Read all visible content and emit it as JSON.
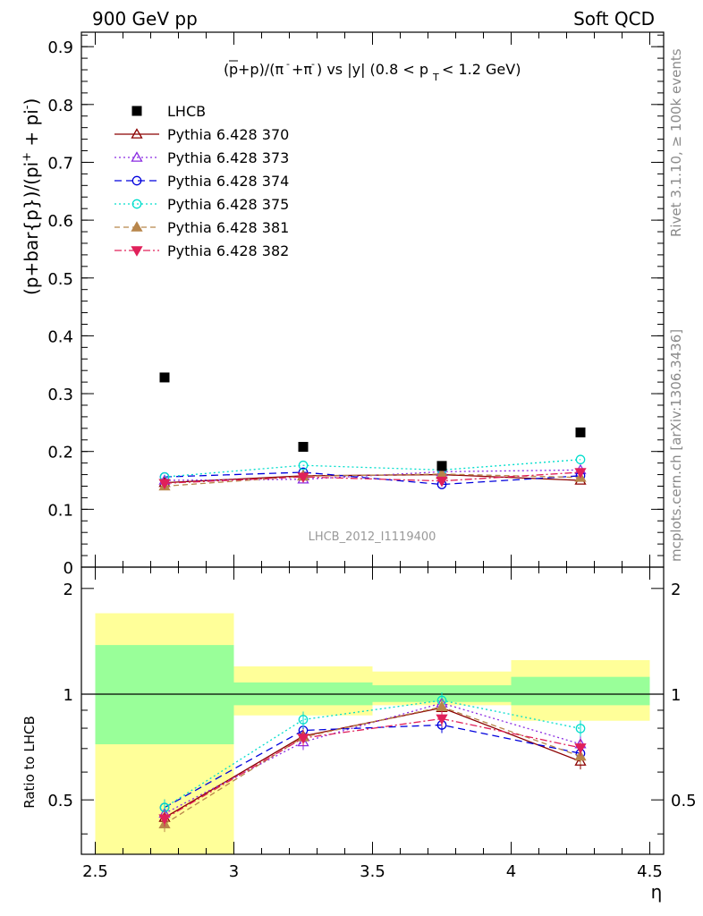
{
  "header": {
    "left": "900 GeV pp",
    "right": "Soft QCD"
  },
  "side": {
    "rivet": "Rivet 3.1.10, ≥ 100k events",
    "mcplots": "mcplots.cern.ch [arXiv:1306.3436]"
  },
  "chart_data": {
    "type": "scatter",
    "title": "(p̄+p)/(π⁻+π⁻) vs |y| (0.8 < p_T < 1.2 GeV)",
    "analysis_id": "LHCB_2012_I1119400",
    "xlabel": "η",
    "ylabel": "(p+bar{p})/(pi⁺ + pi⁻)",
    "ratio_ylabel": "Ratio to LHCB",
    "xlim": [
      2.45,
      4.55
    ],
    "ylim": [
      0,
      0.925
    ],
    "ratio_ylim": [
      0.35,
      2.3
    ],
    "x_ticks": [
      "2.5",
      "3",
      "3.5",
      "4",
      "4.5"
    ],
    "y_ticks": [
      "0",
      "0.1",
      "0.2",
      "0.3",
      "0.4",
      "0.5",
      "0.6",
      "0.7",
      "0.8",
      "0.9"
    ],
    "ratio_ticks": [
      "0.5",
      "1",
      "2"
    ],
    "x": [
      2.75,
      3.25,
      3.75,
      4.25
    ],
    "bins": [
      [
        2.5,
        3.0
      ],
      [
        3.0,
        3.5
      ],
      [
        3.5,
        4.0
      ],
      [
        4.0,
        4.5
      ]
    ],
    "data": {
      "name": "LHCB",
      "values": [
        0.328,
        0.208,
        0.175,
        0.233
      ],
      "color": "#000000"
    },
    "ratio_bands": {
      "inner": [
        [
          0.72,
          1.38
        ],
        [
          0.93,
          1.08
        ],
        [
          0.95,
          1.06
        ],
        [
          0.93,
          1.12
        ]
      ],
      "outer": [
        [
          0.35,
          1.7
        ],
        [
          0.87,
          1.2
        ],
        [
          0.93,
          1.16
        ],
        [
          0.84,
          1.25
        ]
      ],
      "inner_color": "#99ff99",
      "outer_color": "#ffff99"
    },
    "series": [
      {
        "name": "Pythia 6.428 370",
        "values": [
          0.146,
          0.158,
          0.16,
          0.15
        ],
        "color": "#8b0000",
        "dash": "",
        "marker": "tri-open"
      },
      {
        "name": "Pythia 6.428 373",
        "values": [
          0.15,
          0.152,
          0.165,
          0.168
        ],
        "color": "#8a2be2",
        "dash": "2,3",
        "marker": "tri-open"
      },
      {
        "name": "Pythia 6.428 374",
        "values": [
          0.156,
          0.164,
          0.143,
          0.158
        ],
        "color": "#0000dd",
        "dash": "8,5",
        "marker": "circle-open"
      },
      {
        "name": "Pythia 6.428 375",
        "values": [
          0.156,
          0.176,
          0.168,
          0.186
        ],
        "color": "#00ddcc",
        "dash": "2,3",
        "marker": "circle-open"
      },
      {
        "name": "Pythia 6.428 381",
        "values": [
          0.14,
          0.157,
          0.161,
          0.155
        ],
        "color": "#b8864b",
        "dash": "6,4",
        "marker": "tri-filled"
      },
      {
        "name": "Pythia 6.428 382",
        "values": [
          0.145,
          0.156,
          0.149,
          0.164
        ],
        "color": "#e0205a",
        "dash": "8,3,2,3",
        "marker": "tri-down-filled"
      }
    ]
  }
}
